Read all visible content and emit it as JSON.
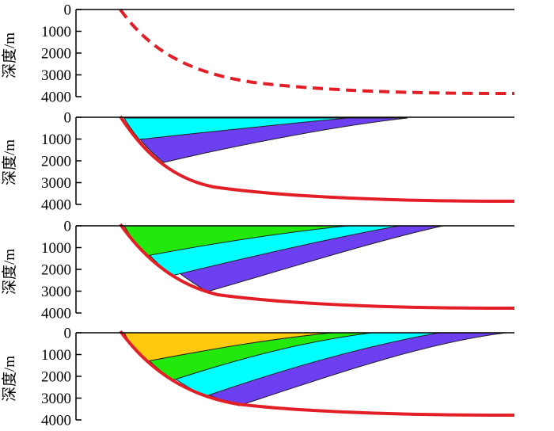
{
  "figure": {
    "y_axis_title": "深度/m",
    "depth_ticks": [
      "0",
      "1000",
      "2000",
      "3000",
      "4000"
    ],
    "colors": {
      "fault_line": "#e21f26",
      "layer_boundary": "#222222",
      "layers": [
        "#ffc90e",
        "#22e80c",
        "#00ffff",
        "#6c3ff0"
      ]
    },
    "panels": [
      {
        "id": "panel-1",
        "fault_style": "dashed",
        "layer_count": 0
      },
      {
        "id": "panel-2",
        "fault_style": "solid",
        "layer_count": 2
      },
      {
        "id": "panel-3",
        "fault_style": "solid",
        "layer_count": 3
      },
      {
        "id": "panel-4",
        "fault_style": "solid",
        "layer_count": 4
      }
    ]
  }
}
